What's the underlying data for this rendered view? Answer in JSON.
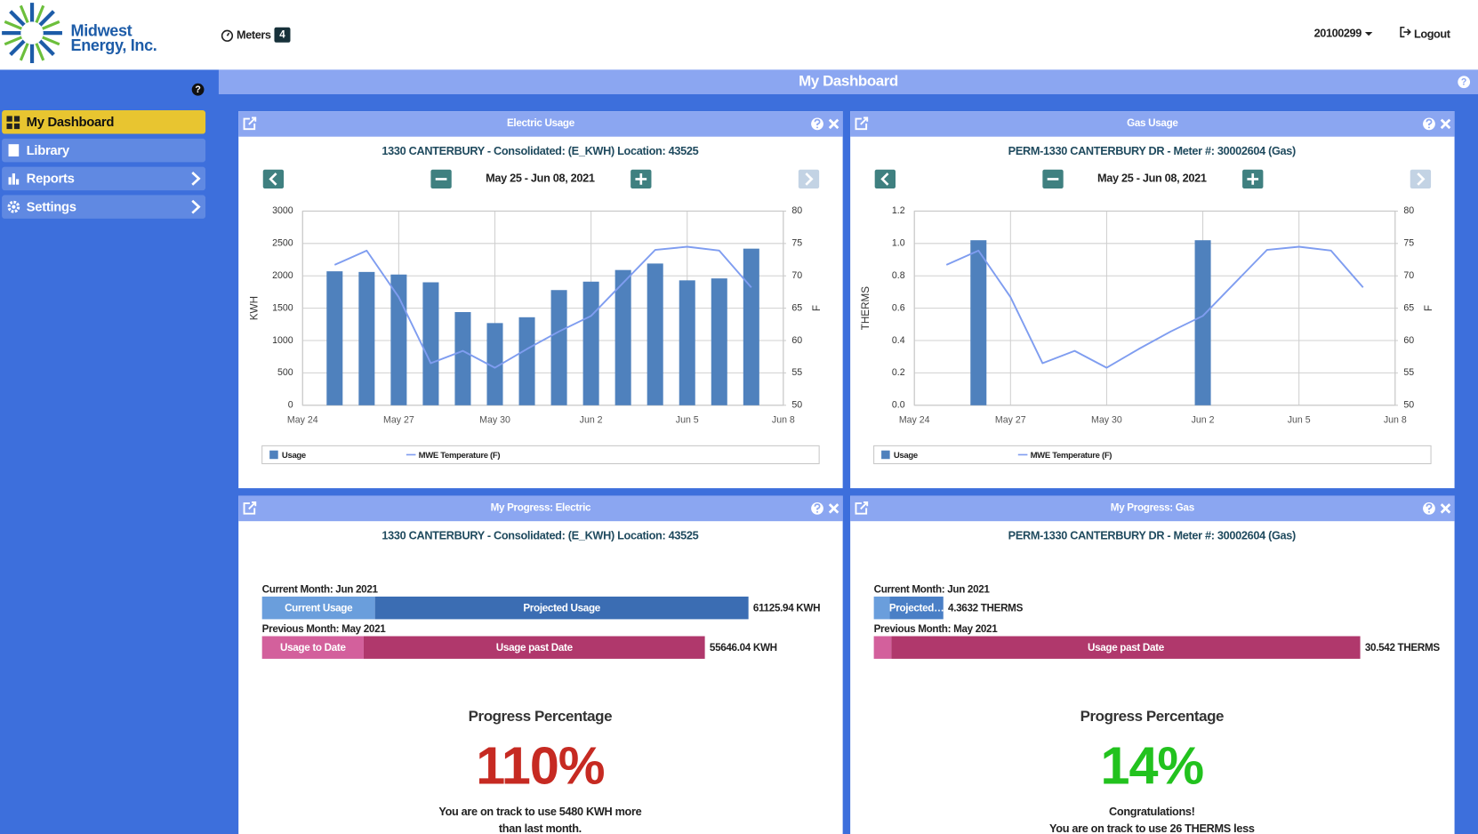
{
  "header": {
    "brand_line1": "Midwest",
    "brand_line2": "Energy, Inc.",
    "meters_label": "Meters",
    "meters_count": "4",
    "account": "20100299",
    "logout": "Logout"
  },
  "sidebar": {
    "items": [
      "My Dashboard",
      "Library",
      "Reports",
      "Settings"
    ]
  },
  "page_title": "My Dashboard",
  "chart_data": [
    {
      "type": "combo",
      "widget_title": "Electric Usage",
      "title": "1330 CANTERBURY - Consolidated: (E_KWH) Location: 43525",
      "date_range": "May 25 - Jun 08, 2021",
      "x": [
        "2021-05-25",
        "2021-05-26",
        "2021-05-27",
        "2021-05-28",
        "2021-05-29",
        "2021-05-30",
        "2021-05-31",
        "2021-06-01",
        "2021-06-02",
        "2021-06-03",
        "2021-06-04",
        "2021-06-05",
        "2021-06-06",
        "2021-06-07"
      ],
      "xlim": [
        "2021-05-24",
        "2021-06-08"
      ],
      "xticks": [
        {
          "value": "2021-05-24",
          "label": "May 24"
        },
        {
          "value": "2021-05-27",
          "label": "May 27"
        },
        {
          "value": "2021-05-30",
          "label": "May 30"
        },
        {
          "value": "2021-06-02",
          "label": "Jun 2"
        },
        {
          "value": "2021-06-05",
          "label": "Jun 5"
        },
        {
          "value": "2021-06-08",
          "label": "Jun 8"
        }
      ],
      "ylabel": "KWH",
      "ylim": [
        0,
        3000
      ],
      "yticks": [
        0,
        500,
        1000,
        1500,
        2000,
        2500,
        3000
      ],
      "y2label": "F",
      "y2lim": [
        50,
        80
      ],
      "y2ticks": [
        50,
        55,
        60,
        65,
        70,
        75,
        80
      ],
      "grid": true,
      "series": [
        {
          "name": "Usage",
          "kind": "bar",
          "color": "#4f81bd",
          "values": [
            2070,
            2060,
            2020,
            1900,
            1440,
            1270,
            1360,
            1780,
            1910,
            2090,
            2190,
            1930,
            1960,
            2420
          ]
        },
        {
          "name": "MWE Temperature (F)",
          "kind": "line",
          "axis": "y2",
          "color": "#7f9df0",
          "values": [
            71.7,
            73.9,
            66.7,
            56.5,
            58.4,
            55.8,
            58.7,
            61.4,
            63.8,
            68.9,
            74.0,
            74.5,
            73.9,
            68.2
          ]
        }
      ]
    },
    {
      "type": "combo",
      "widget_title": "Gas Usage",
      "title": "PERM-1330 CANTERBURY DR - Meter #: 30002604 (Gas)",
      "date_range": "May 25 - Jun 08, 2021",
      "x": [
        "2021-05-25",
        "2021-05-26",
        "2021-05-27",
        "2021-05-28",
        "2021-05-29",
        "2021-05-30",
        "2021-05-31",
        "2021-06-01",
        "2021-06-02",
        "2021-06-03",
        "2021-06-04",
        "2021-06-05",
        "2021-06-06",
        "2021-06-07"
      ],
      "xlim": [
        "2021-05-24",
        "2021-06-08"
      ],
      "xticks": [
        {
          "value": "2021-05-24",
          "label": "May 24"
        },
        {
          "value": "2021-05-27",
          "label": "May 27"
        },
        {
          "value": "2021-05-30",
          "label": "May 30"
        },
        {
          "value": "2021-06-02",
          "label": "Jun 2"
        },
        {
          "value": "2021-06-05",
          "label": "Jun 5"
        },
        {
          "value": "2021-06-08",
          "label": "Jun 8"
        }
      ],
      "ylabel": "THERMS",
      "ylim": [
        0,
        1.2
      ],
      "yticks": [
        {
          "value": 0,
          "label": "0.0"
        },
        0.2,
        0.4,
        0.6,
        0.8,
        {
          "value": 1,
          "label": "1.0"
        },
        1.2
      ],
      "y2label": "F",
      "y2lim": [
        50,
        80
      ],
      "y2ticks": [
        50,
        55,
        60,
        65,
        70,
        75,
        80
      ],
      "grid": true,
      "series": [
        {
          "name": "Usage",
          "kind": "bar",
          "color": "#4f81bd",
          "values": [
            0,
            1.02,
            0,
            0,
            0,
            0,
            0,
            0,
            1.02,
            0,
            0,
            0,
            0,
            0
          ]
        },
        {
          "name": "MWE Temperature (F)",
          "kind": "line",
          "axis": "y2",
          "color": "#7f9df0",
          "values": [
            71.7,
            73.9,
            66.7,
            56.5,
            58.4,
            55.8,
            58.7,
            61.4,
            63.8,
            68.9,
            74.0,
            74.5,
            73.9,
            68.2
          ]
        }
      ]
    }
  ],
  "progress": [
    {
      "widget_title": "My Progress: Electric",
      "title": "1330 CANTERBURY - Consolidated: (E_KWH) Location: 43525",
      "bars": [
        {
          "label": "Current Month: Jun 2021",
          "colors": [
            "#6a9edc",
            "#3b6db3"
          ],
          "segments": [
            {
              "label": "Current Usage",
              "value": 14190
            },
            {
              "label": "Projected Usage",
              "value": 46935.94
            }
          ],
          "total_label": "61125.94 KWH"
        },
        {
          "label": "Previous Month: May 2021",
          "colors": [
            "#d3609c",
            "#b0386c"
          ],
          "segments": [
            {
              "label": "Usage to Date",
              "value": 12770
            },
            {
              "label": "Usage past Date",
              "value": 42876.04
            }
          ],
          "total_label": "55646.04 KWH"
        }
      ],
      "percent_title": "Progress Percentage",
      "percent": "110%",
      "percent_color": "#c62a22",
      "message": [
        "You are on track to use 5480 KWH more",
        "than last month."
      ]
    },
    {
      "widget_title": "My Progress: Gas",
      "title": "PERM-1330 CANTERBURY DR - Meter #: 30002604 (Gas)",
      "bars": [
        {
          "label": "Current Month: Jun 2021",
          "colors": [
            "#6a9edc",
            "#4a7fc6"
          ],
          "segments": [
            {
              "value": 1.0
            },
            {
              "label": "Projected…",
              "value": 3.3632
            }
          ],
          "total_label": "4.3632 THERMS"
        },
        {
          "label": "Previous Month: May 2021",
          "colors": [
            "#d3609c",
            "#b0386c"
          ],
          "segments": [
            {
              "value": 1.1
            },
            {
              "label": "Usage past Date",
              "value": 29.442
            }
          ],
          "total_label": "30.542 THERMS"
        }
      ],
      "percent_title": "Progress Percentage",
      "percent": "14%",
      "percent_color": "#22c21e",
      "message": [
        "Congratulations!",
        "You are on track to use 26 THERMS less"
      ]
    }
  ]
}
